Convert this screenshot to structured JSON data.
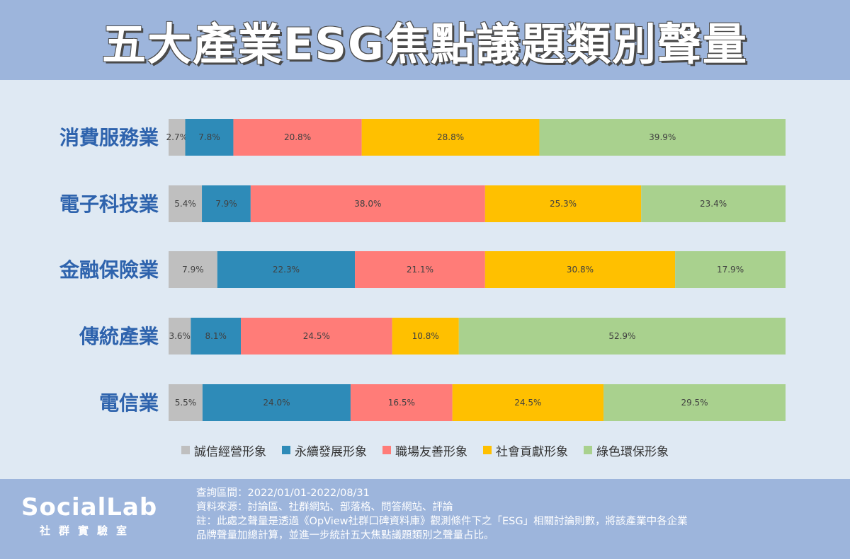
{
  "title": "五大產業ESG焦點議題類別聲量",
  "chart_data": {
    "type": "bar",
    "orientation": "horizontal",
    "stacked": "percent",
    "categories": [
      "消費服務業",
      "電子科技業",
      "金融保險業",
      "傳統產業",
      "電信業"
    ],
    "series": [
      {
        "name": "誠信經營形象",
        "color": "#bfbfbf",
        "values": [
          2.7,
          5.4,
          7.9,
          3.6,
          5.5
        ],
        "labels": [
          "2.7%",
          "5.4%",
          "7.9%",
          "3.6%",
          "5.5%"
        ]
      },
      {
        "name": "永續發展形象",
        "color": "#2e8bb8",
        "values": [
          7.8,
          7.9,
          22.3,
          8.1,
          24.0
        ],
        "labels": [
          "7.8%",
          "7.9%",
          "22.3%",
          "8.1%",
          "24.0%"
        ]
      },
      {
        "name": "職場友善形象",
        "color": "#ff7c78",
        "values": [
          20.8,
          38.0,
          21.1,
          24.5,
          16.5
        ],
        "labels": [
          "20.8%",
          "38.0%",
          "21.1%",
          "24.5%",
          "16.5%"
        ]
      },
      {
        "name": "社會貢獻形象",
        "color": "#ffc000",
        "values": [
          28.8,
          25.3,
          30.8,
          10.8,
          24.5
        ],
        "labels": [
          "28.8%",
          "25.3%",
          "30.8%",
          "10.8%",
          "24.5%"
        ]
      },
      {
        "name": "綠色環保形象",
        "color": "#a9d18e",
        "values": [
          39.9,
          23.4,
          17.9,
          52.9,
          29.5
        ],
        "labels": [
          "39.9%",
          "23.4%",
          "17.9%",
          "52.9%",
          "29.5%"
        ]
      }
    ],
    "legend_position": "bottom",
    "grid": false
  },
  "footer": {
    "logo_text": "SocialLab",
    "logo_subtext": "社群實驗室",
    "query_period": "查詢區間：2022/01/01-2022/08/31",
    "source": "資料來源：討論區、社群網站、部落格、問答網站、評論",
    "note_line1": "註：此處之聲量是透過《OpView社群口碑資料庫》觀測條件下之「ESG」相關討論則數，將該產業中各企業",
    "note_line2": "品牌聲量加總計算，並進一步統計五大焦點議題類別之聲量占比。"
  }
}
